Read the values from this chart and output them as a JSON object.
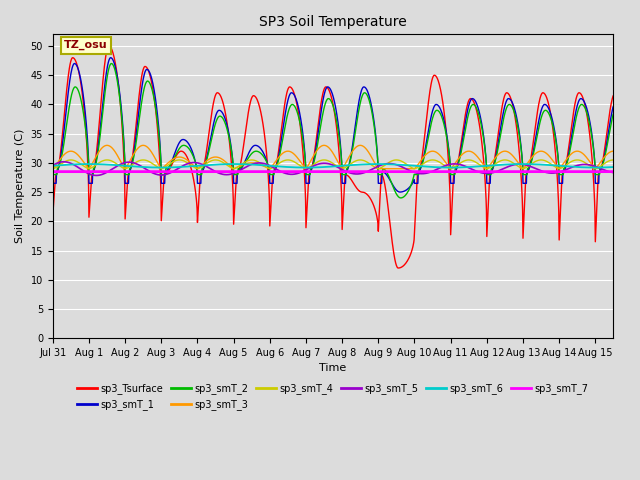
{
  "title": "SP3 Soil Temperature",
  "ylabel": "Soil Temperature (C)",
  "xlabel": "Time",
  "annotation_text": "TZ_osu",
  "ylim": [
    0,
    52
  ],
  "yticks": [
    0,
    5,
    10,
    15,
    20,
    25,
    30,
    35,
    40,
    45,
    50
  ],
  "bg_color": "#dcdcdc",
  "plot_bg_color": "#dcdcdc",
  "grid_color": "#ffffff",
  "series_colors": {
    "sp3_Tsurface": "#ff0000",
    "sp3_smT_1": "#0000cc",
    "sp3_smT_2": "#00bb00",
    "sp3_smT_3": "#ff9900",
    "sp3_smT_4": "#cccc00",
    "sp3_smT_5": "#9900cc",
    "sp3_smT_6": "#00cccc",
    "sp3_smT_7": "#ff00ff"
  },
  "xticklabels": [
    "Jul 31",
    "Aug 1",
    "Aug 2",
    "Aug 3",
    "Aug 4",
    "Aug 5",
    "Aug 6",
    "Aug 7",
    "Aug 8",
    "Aug 9",
    "Aug 10",
    "Aug 11",
    "Aug 12",
    "Aug 13",
    "Aug 14",
    "Aug 15"
  ],
  "num_days": 15.5
}
